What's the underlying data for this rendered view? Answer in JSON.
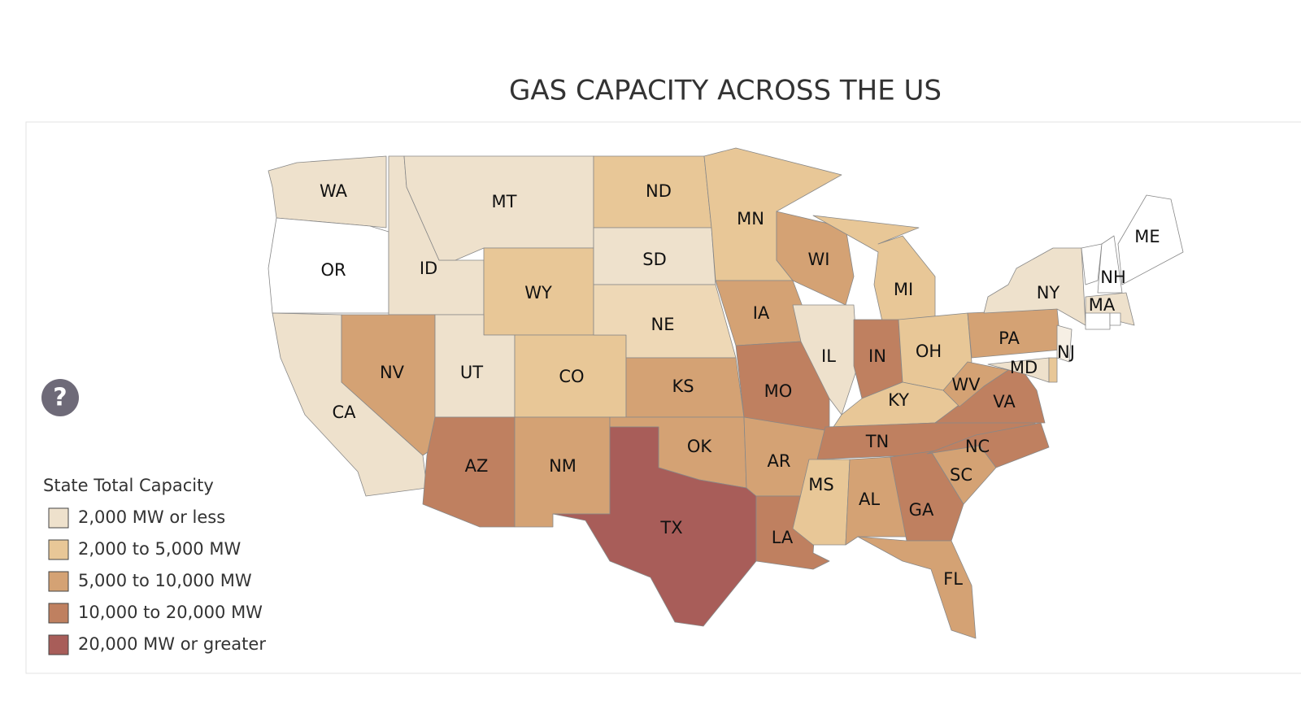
{
  "title": "GAS CAPACITY ACROSS THE US",
  "help_icon": "?",
  "legend": {
    "title": "State Total Capacity",
    "items": [
      {
        "label": "2,000 MW or less",
        "color": "#eee1cc"
      },
      {
        "label": "2,000 to 5,000 MW",
        "color": "#e8c797"
      },
      {
        "label": "5,000 to 10,000 MW",
        "color": "#d4a274"
      },
      {
        "label": "10,000 to 20,000 MW",
        "color": "#bf8060"
      },
      {
        "label": "20,000 MW or greater",
        "color": "#a85d59"
      }
    ]
  },
  "states": [
    {
      "label": "WA",
      "color": "#eee1cc"
    },
    {
      "label": "OR",
      "color": "#ffffff"
    },
    {
      "label": "CA",
      "color": "#eee1cc"
    },
    {
      "label": "ID",
      "color": "#eee1cc"
    },
    {
      "label": "NV",
      "color": "#d4a274"
    },
    {
      "label": "MT",
      "color": "#eee1cc"
    },
    {
      "label": "WY",
      "color": "#e8c797"
    },
    {
      "label": "UT",
      "color": "#eee1cc"
    },
    {
      "label": "CO",
      "color": "#e8c797"
    },
    {
      "label": "AZ",
      "color": "#bf8060"
    },
    {
      "label": "NM",
      "color": "#d4a274"
    },
    {
      "label": "ND",
      "color": "#e8c797"
    },
    {
      "label": "SD",
      "color": "#eee1cc"
    },
    {
      "label": "NE",
      "color": "#eed8b6"
    },
    {
      "label": "KS",
      "color": "#d4a274"
    },
    {
      "label": "OK",
      "color": "#d4a274"
    },
    {
      "label": "TX",
      "color": "#a85d59"
    },
    {
      "label": "MN",
      "color": "#e8c797"
    },
    {
      "label": "IA",
      "color": "#d4a274"
    },
    {
      "label": "MO",
      "color": "#bf8060"
    },
    {
      "label": "AR",
      "color": "#d4a274"
    },
    {
      "label": "LA",
      "color": "#bf8060"
    },
    {
      "label": "WI",
      "color": "#d4a274"
    },
    {
      "label": "IL",
      "color": "#eee1cc"
    },
    {
      "label": "MI",
      "color": "#e8c797"
    },
    {
      "label": "IN",
      "color": "#bf8060"
    },
    {
      "label": "OH",
      "color": "#e8c797"
    },
    {
      "label": "KY",
      "color": "#e8c797"
    },
    {
      "label": "TN",
      "color": "#bf8060"
    },
    {
      "label": "MS",
      "color": "#e8c797"
    },
    {
      "label": "AL",
      "color": "#d4a274"
    },
    {
      "label": "GA",
      "color": "#bf8060"
    },
    {
      "label": "FL",
      "color": "#d4a274"
    },
    {
      "label": "SC",
      "color": "#d4a274"
    },
    {
      "label": "NC",
      "color": "#bf8060"
    },
    {
      "label": "VA",
      "color": "#bf8060"
    },
    {
      "label": "WV",
      "color": "#d4a274"
    },
    {
      "label": "PA",
      "color": "#d4a274"
    },
    {
      "label": "NY",
      "color": "#eee1cc"
    },
    {
      "label": "NJ",
      "color": "#f6efe4"
    },
    {
      "label": "MD",
      "color": "#eee1cc"
    },
    {
      "label": null,
      "color": "#e8c797"
    },
    {
      "label": null,
      "color": "#ffffff"
    },
    {
      "label": "NH",
      "color": "#ffffff"
    },
    {
      "label": "ME",
      "color": "#ffffff"
    },
    {
      "label": "MA",
      "color": "#eee1cc"
    },
    {
      "label": null,
      "color": "#ffffff"
    },
    {
      "label": null,
      "color": "#ffffff"
    }
  ]
}
